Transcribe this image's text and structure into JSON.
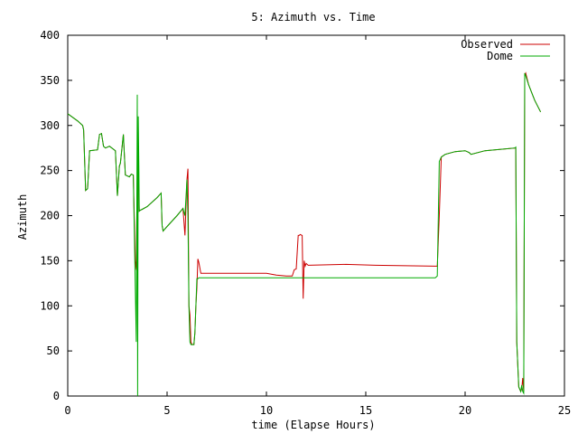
{
  "chart_data": {
    "type": "line",
    "title": "5: Azimuth vs. Time",
    "xlabel": "time (Elapse Hours)",
    "ylabel": "Azimuth",
    "xlim": [
      0,
      25
    ],
    "ylim": [
      0,
      400
    ],
    "xticks": [
      0,
      5,
      10,
      15,
      20,
      25
    ],
    "yticks": [
      0,
      50,
      100,
      150,
      200,
      250,
      300,
      350,
      400
    ],
    "xtick_labels": [
      "0",
      "5",
      "10",
      "15",
      "20",
      "25"
    ],
    "ytick_labels": [
      "0",
      "50",
      "100",
      "150",
      "200",
      "250",
      "300",
      "350",
      "400"
    ],
    "grid": false,
    "legend_position": "top-right",
    "series": [
      {
        "name": "Observed",
        "color": "#cc0000",
        "x": [
          0,
          0.5,
          0.75,
          0.8,
          0.9,
          1.0,
          1.1,
          1.5,
          1.6,
          1.7,
          1.8,
          1.9,
          2.0,
          2.1,
          2.4,
          2.5,
          2.6,
          2.65,
          2.8,
          2.9,
          3.0,
          3.1,
          3.2,
          3.3,
          3.4,
          3.45,
          3.5,
          3.55,
          3.6,
          3.65,
          3.75,
          4.0,
          4.5,
          4.7,
          4.75,
          4.8,
          5.0,
          5.5,
          5.8,
          5.9,
          6.0,
          6.05,
          6.1,
          6.15,
          6.2,
          6.25,
          6.3,
          6.35,
          6.4,
          6.45,
          6.5,
          6.55,
          6.6,
          6.7,
          7.0,
          10.0,
          10.5,
          11.0,
          11.3,
          11.4,
          11.5,
          11.6,
          11.65,
          11.7,
          11.8,
          11.85,
          11.9,
          11.95,
          12.0,
          12.1,
          14.0,
          15.5,
          18.5,
          18.6,
          18.7,
          18.8,
          19.0,
          19.5,
          20.0,
          20.2,
          20.3,
          21.0,
          22.5,
          22.55,
          22.6,
          22.7,
          22.8,
          22.85,
          22.9,
          22.95,
          23.0,
          23.05,
          23.2,
          23.5,
          23.8
        ],
        "y": [
          313,
          305,
          300,
          295,
          228,
          230,
          272,
          273,
          290,
          291,
          277,
          275,
          276,
          277,
          272,
          222,
          255,
          258,
          290,
          245,
          244,
          243,
          246,
          245,
          150,
          140,
          250,
          245,
          205,
          206,
          207,
          210,
          220,
          225,
          189,
          183,
          188,
          200,
          208,
          178,
          240,
          252,
          100,
          90,
          60,
          57,
          57,
          57,
          70,
          100,
          120,
          152,
          148,
          136,
          136,
          136,
          134,
          133,
          133,
          140,
          141,
          178,
          178,
          179,
          178,
          108,
          150,
          144,
          147,
          145,
          146,
          145,
          144,
          144,
          200,
          265,
          268,
          271,
          272,
          270,
          268,
          272,
          275,
          275,
          60,
          10,
          5,
          8,
          20,
          5,
          355,
          358,
          345,
          328,
          315
        ]
      },
      {
        "name": "Dome",
        "color": "#00aa00",
        "x": [
          0,
          0.5,
          0.75,
          0.8,
          0.9,
          1.0,
          1.1,
          1.5,
          1.6,
          1.7,
          1.8,
          1.9,
          2.0,
          2.1,
          2.4,
          2.5,
          2.6,
          2.65,
          2.8,
          2.9,
          3.0,
          3.1,
          3.2,
          3.3,
          3.4,
          3.45,
          3.5,
          3.52,
          3.55,
          3.58,
          3.6,
          3.65,
          3.75,
          4.0,
          4.5,
          4.7,
          4.75,
          4.8,
          5.0,
          5.5,
          5.8,
          5.9,
          6.0,
          6.05,
          6.1,
          6.15,
          6.2,
          6.25,
          6.3,
          6.35,
          6.4,
          6.45,
          6.5,
          6.55,
          6.6,
          7.0,
          10.0,
          12.0,
          15.0,
          18.5,
          18.6,
          18.7,
          18.8,
          19.0,
          19.5,
          20.0,
          20.2,
          20.3,
          21.0,
          22.5,
          22.55,
          22.6,
          22.7,
          22.8,
          22.85,
          22.9,
          22.95,
          23.0,
          23.05,
          23.2,
          23.5,
          23.8
        ],
        "y": [
          313,
          305,
          300,
          295,
          228,
          230,
          272,
          273,
          290,
          291,
          277,
          275,
          276,
          277,
          272,
          222,
          255,
          258,
          290,
          245,
          244,
          243,
          246,
          245,
          120,
          60,
          334,
          0,
          310,
          250,
          205,
          206,
          207,
          210,
          220,
          225,
          189,
          183,
          188,
          200,
          208,
          200,
          240,
          200,
          100,
          60,
          57,
          57,
          57,
          57,
          70,
          100,
          130,
          130,
          131,
          131,
          131,
          131,
          131,
          131,
          133,
          260,
          265,
          268,
          271,
          272,
          270,
          268,
          272,
          275,
          276,
          60,
          10,
          5,
          12,
          5,
          3,
          358,
          355,
          345,
          328,
          315
        ]
      }
    ]
  }
}
